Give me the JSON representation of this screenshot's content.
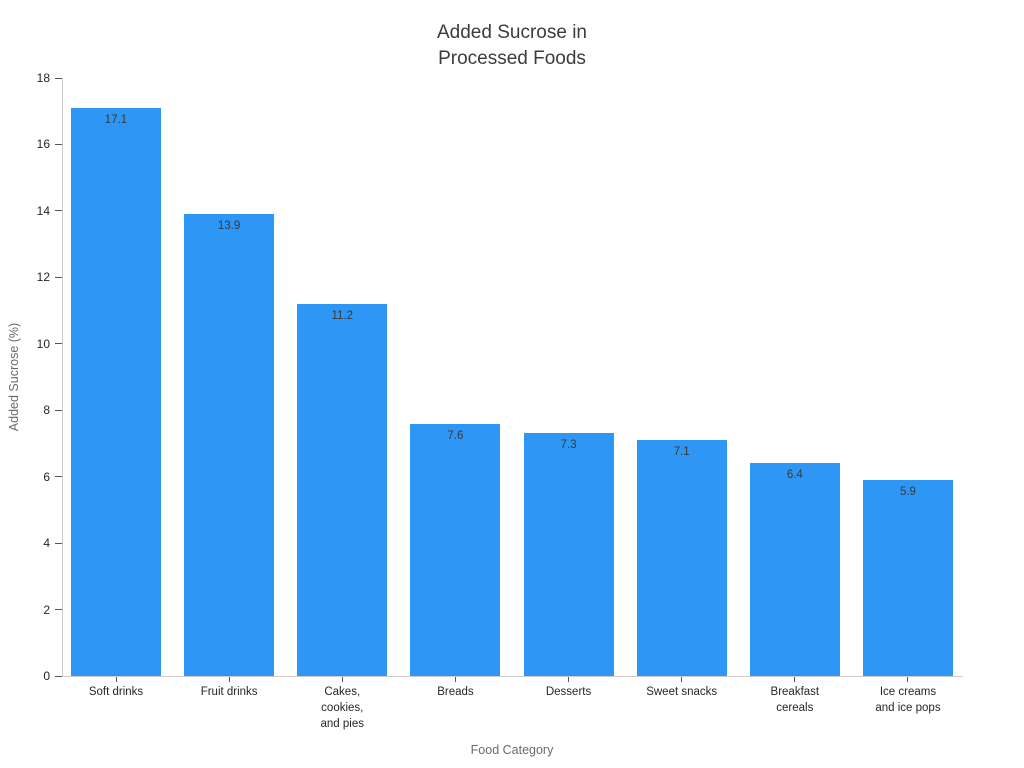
{
  "chart_data": {
    "type": "bar",
    "title": "Added Sucrose in\nProcessed Foods",
    "xlabel": "Food Category",
    "ylabel": "Added Sucrose (%)",
    "categories": [
      "Soft drinks",
      "Fruit drinks",
      "Cakes,\ncookies,\nand pies",
      "Breads",
      "Desserts",
      "Sweet snacks",
      "Breakfast\ncereals",
      "Ice creams\nand ice pops"
    ],
    "values": [
      17.1,
      13.9,
      11.2,
      7.6,
      7.3,
      7.1,
      6.4,
      5.9
    ],
    "value_labels": [
      "17.1",
      "13.9",
      "11.2",
      "7.6",
      "7.3",
      "7.1",
      "6.4",
      "5.9"
    ],
    "ylim": [
      0,
      18
    ],
    "yticks": [
      0,
      2,
      4,
      6,
      8,
      10,
      12,
      14,
      16,
      18
    ],
    "bar_color": "#2E96F5",
    "value_label_color": "#3a3a3a",
    "tick_label_color": "#262626",
    "axis_title_color": "#6b6b6b",
    "title_color": "#3c3c3c",
    "grid": "off",
    "legend": "none"
  }
}
